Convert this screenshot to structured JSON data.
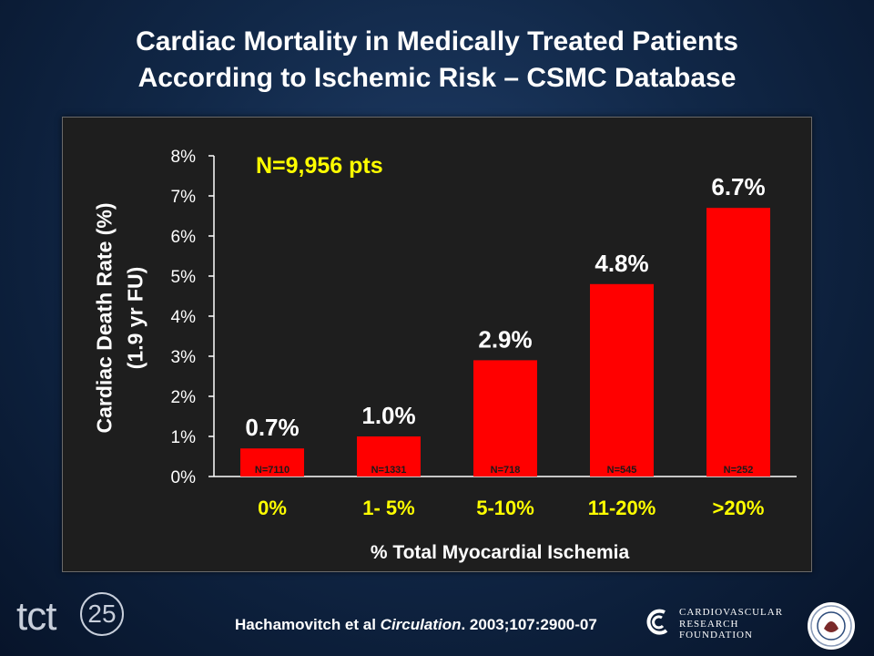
{
  "title": {
    "line1": "Cardiac Mortality in Medically Treated Patients",
    "line2": "According to Ischemic Risk – CSMC Database"
  },
  "chart_data": {
    "type": "bar",
    "categories": [
      "0%",
      "1- 5%",
      "5-10%",
      "11-20%",
      ">20%"
    ],
    "values": [
      0.7,
      1.0,
      2.9,
      4.8,
      6.7
    ],
    "value_labels": [
      "0.7%",
      "1.0%",
      "2.9%",
      "4.8%",
      "6.7%"
    ],
    "n_labels": [
      "N=7110",
      "N=1331",
      "N=718",
      "N=545",
      "N=252"
    ],
    "ylabel_line1": "Cardiac Death Rate (%)",
    "ylabel_line2": "(1.9 yr FU)",
    "xlabel": "% Total Myocardial Ischemia",
    "annotation": "N=9,956 pts",
    "ylim": [
      0,
      8
    ],
    "yticks": [
      "0%",
      "1%",
      "2%",
      "3%",
      "4%",
      "5%",
      "6%",
      "7%",
      "8%"
    ],
    "grid": false,
    "colors": {
      "bar": "#ff0000",
      "bar_label": "#ffffff",
      "category_label": "#ffff00",
      "annotation": "#ffff00",
      "axis": "#ffffff",
      "n_label": "#1a1a1a"
    }
  },
  "footer": {
    "logo_text": "tct",
    "logo_number": "25",
    "citation_authors": "Hachamovitch et al ",
    "citation_journal": "Circulation",
    "citation_rest": ". 2003;107:2900-07",
    "crf_line1": "CARDIOVASCULAR",
    "crf_line2": "RESEARCH",
    "crf_line3": "FOUNDATION"
  }
}
